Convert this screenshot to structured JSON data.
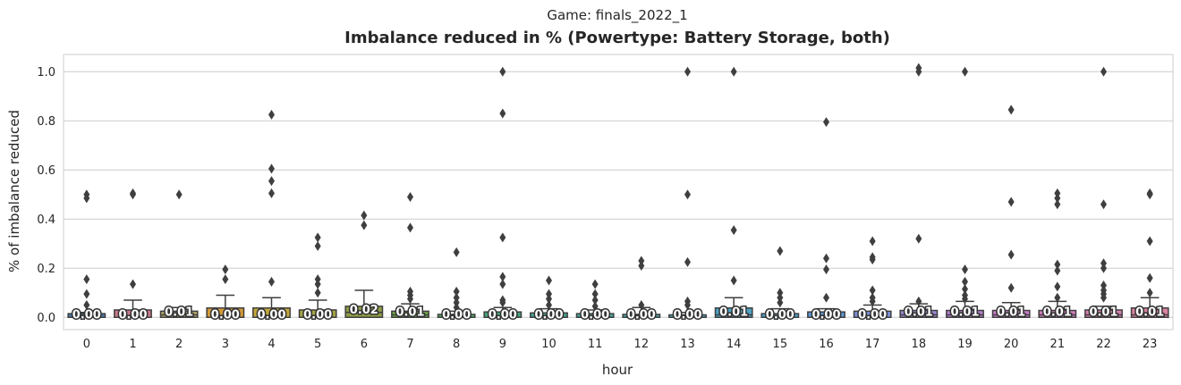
{
  "chart_data": {
    "type": "box",
    "suptitle": "Game: finals_2022_1",
    "title": "Imbalance reduced in % (Powertype: Battery Storage, both)",
    "xlabel": "hour",
    "ylabel": "% of imbalance reduced",
    "ylim": [
      -0.05,
      1.07
    ],
    "yticks": [
      0.0,
      0.2,
      0.4,
      0.6,
      0.8,
      1.0
    ],
    "ytick_labels": [
      "0.0",
      "0.2",
      "0.4",
      "0.6",
      "0.8",
      "1.0"
    ],
    "grid": true,
    "categories": [
      "0",
      "1",
      "2",
      "3",
      "4",
      "5",
      "6",
      "7",
      "8",
      "9",
      "10",
      "11",
      "12",
      "13",
      "14",
      "15",
      "16",
      "17",
      "18",
      "19",
      "20",
      "21",
      "22",
      "23"
    ],
    "boxes": [
      {
        "q1": 0.0,
        "median": 0.0,
        "q3": 0.015,
        "whisker_low": 0.0,
        "whisker_high": 0.02,
        "median_label": "0.00",
        "color": "#4878a8",
        "outliers": [
          0.5,
          0.485,
          0.155,
          0.095,
          0.05
        ]
      },
      {
        "q1": 0.0,
        "median": 0.0,
        "q3": 0.03,
        "whisker_low": 0.0,
        "whisker_high": 0.07,
        "median_label": "0.00",
        "color": "#c8788a",
        "outliers": [
          0.505,
          0.5,
          0.135
        ]
      },
      {
        "q1": 0.0,
        "median": 0.01,
        "q3": 0.025,
        "whisker_low": 0.0,
        "whisker_high": 0.04,
        "median_label": "0.01",
        "color": "#b2a86a",
        "outliers": [
          0.5
        ]
      },
      {
        "q1": 0.0,
        "median": 0.0,
        "q3": 0.038,
        "whisker_low": 0.0,
        "whisker_high": 0.09,
        "median_label": "0.00",
        "color": "#d39a3a",
        "outliers": [
          0.195,
          0.155
        ]
      },
      {
        "q1": 0.0,
        "median": 0.0,
        "q3": 0.038,
        "whisker_low": 0.0,
        "whisker_high": 0.08,
        "median_label": "0.00",
        "color": "#c4a83a",
        "outliers": [
          0.825,
          0.605,
          0.555,
          0.505,
          0.145
        ]
      },
      {
        "q1": 0.0,
        "median": 0.0,
        "q3": 0.03,
        "whisker_low": 0.0,
        "whisker_high": 0.07,
        "median_label": "0.00",
        "color": "#a3a344",
        "outliers": [
          0.325,
          0.29,
          0.155,
          0.135,
          0.1
        ]
      },
      {
        "q1": 0.0,
        "median": 0.02,
        "q3": 0.045,
        "whisker_low": 0.0,
        "whisker_high": 0.11,
        "median_label": "0.02",
        "color": "#8e9d44",
        "outliers": [
          0.415,
          0.375
        ]
      },
      {
        "q1": 0.0,
        "median": 0.01,
        "q3": 0.025,
        "whisker_low": 0.0,
        "whisker_high": 0.055,
        "median_label": "0.01",
        "color": "#6fa846",
        "outliers": [
          0.49,
          0.365,
          0.105,
          0.09,
          0.075
        ]
      },
      {
        "q1": 0.0,
        "median": 0.0,
        "q3": 0.012,
        "whisker_low": 0.0,
        "whisker_high": 0.025,
        "median_label": "0.00",
        "color": "#4fa85a",
        "outliers": [
          0.265,
          0.105,
          0.08,
          0.06,
          0.04
        ]
      },
      {
        "q1": 0.0,
        "median": 0.0,
        "q3": 0.022,
        "whisker_low": 0.0,
        "whisker_high": 0.04,
        "median_label": "0.00",
        "color": "#46a47a",
        "outliers": [
          1.0,
          0.83,
          0.325,
          0.165,
          0.135,
          0.07,
          0.06
        ]
      },
      {
        "q1": 0.0,
        "median": 0.0,
        "q3": 0.018,
        "whisker_low": 0.0,
        "whisker_high": 0.035,
        "median_label": "0.00",
        "color": "#47a390",
        "outliers": [
          0.15,
          0.095,
          0.075,
          0.05
        ]
      },
      {
        "q1": 0.0,
        "median": 0.0,
        "q3": 0.015,
        "whisker_low": 0.0,
        "whisker_high": 0.03,
        "median_label": "0.00",
        "color": "#48a49e",
        "outliers": [
          0.135,
          0.095,
          0.07,
          0.045
        ]
      },
      {
        "q1": 0.0,
        "median": 0.0,
        "q3": 0.012,
        "whisker_low": 0.0,
        "whisker_high": 0.04,
        "median_label": "0.00",
        "color": "#49a3aa",
        "outliers": [
          0.23,
          0.21,
          0.05
        ]
      },
      {
        "q1": 0.0,
        "median": 0.0,
        "q3": 0.01,
        "whisker_low": 0.0,
        "whisker_high": 0.02,
        "median_label": "0.00",
        "color": "#4aa2b6",
        "outliers": [
          1.0,
          0.5,
          0.225,
          0.065,
          0.05
        ]
      },
      {
        "q1": 0.0,
        "median": 0.01,
        "q3": 0.038,
        "whisker_low": 0.0,
        "whisker_high": 0.08,
        "median_label": "0.01",
        "color": "#4ba4c4",
        "outliers": [
          1.0,
          0.355,
          0.15
        ]
      },
      {
        "q1": 0.0,
        "median": 0.0,
        "q3": 0.015,
        "whisker_low": 0.0,
        "whisker_high": 0.035,
        "median_label": "0.00",
        "color": "#4e9fcc",
        "outliers": [
          0.27,
          0.1,
          0.08,
          0.06
        ]
      },
      {
        "q1": 0.0,
        "median": 0.0,
        "q3": 0.022,
        "whisker_low": 0.0,
        "whisker_high": 0.035,
        "median_label": "0.00",
        "color": "#5d96d4",
        "outliers": [
          0.795,
          0.24,
          0.195,
          0.08
        ]
      },
      {
        "q1": 0.0,
        "median": 0.0,
        "q3": 0.025,
        "whisker_low": 0.0,
        "whisker_high": 0.05,
        "median_label": "0.00",
        "color": "#7a8fd6",
        "outliers": [
          0.31,
          0.245,
          0.235,
          0.11,
          0.08,
          0.065
        ]
      },
      {
        "q1": 0.0,
        "median": 0.01,
        "q3": 0.028,
        "whisker_low": 0.0,
        "whisker_high": 0.055,
        "median_label": "0.01",
        "color": "#9b87d4",
        "outliers": [
          1.015,
          1.0,
          0.32,
          0.065
        ]
      },
      {
        "q1": 0.0,
        "median": 0.01,
        "q3": 0.028,
        "whisker_low": 0.0,
        "whisker_high": 0.065,
        "median_label": "0.01",
        "color": "#b680d0",
        "outliers": [
          1.0,
          0.195,
          0.145,
          0.115,
          0.09,
          0.075
        ]
      },
      {
        "q1": 0.0,
        "median": 0.01,
        "q3": 0.028,
        "whisker_low": 0.0,
        "whisker_high": 0.06,
        "median_label": "0.01",
        "color": "#c87dc8",
        "outliers": [
          0.845,
          0.47,
          0.255,
          0.12
        ]
      },
      {
        "q1": 0.0,
        "median": 0.01,
        "q3": 0.028,
        "whisker_low": 0.0,
        "whisker_high": 0.065,
        "median_label": "0.01",
        "color": "#d27ebc",
        "outliers": [
          0.505,
          0.485,
          0.46,
          0.215,
          0.19,
          0.125,
          0.08
        ]
      },
      {
        "q1": 0.0,
        "median": 0.01,
        "q3": 0.03,
        "whisker_low": 0.0,
        "whisker_high": 0.045,
        "median_label": "0.01",
        "color": "#d880b0",
        "outliers": [
          1.0,
          0.46,
          0.22,
          0.2,
          0.13,
          0.11,
          0.095,
          0.08
        ]
      },
      {
        "q1": 0.0,
        "median": 0.01,
        "q3": 0.038,
        "whisker_low": 0.0,
        "whisker_high": 0.08,
        "median_label": "0.01",
        "color": "#dc82a4",
        "outliers": [
          0.505,
          0.5,
          0.31,
          0.16,
          0.1
        ]
      }
    ]
  }
}
